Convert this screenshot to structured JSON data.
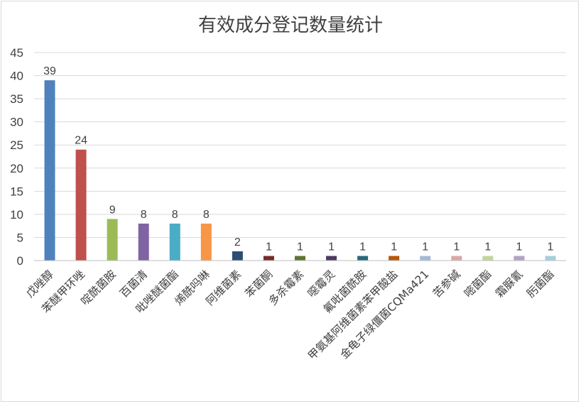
{
  "chart_data": {
    "type": "bar",
    "title": "有效成分登记数量统计",
    "xlabel": "",
    "ylabel": "",
    "ylim": [
      0,
      45
    ],
    "yticks": [
      0,
      5,
      10,
      15,
      20,
      25,
      30,
      35,
      40,
      45
    ],
    "grid": true,
    "legend": "none",
    "categories": [
      "戊唑醇",
      "苯醚甲环唑",
      "啶酰菌胺",
      "百菌清",
      "吡唑醚菌酯",
      "烯酰吗啉",
      "阿维菌素",
      "苯菌酮",
      "多杀霉素",
      "噁霉灵",
      "氟吡菌酰胺",
      "甲氨基阿维菌素苯甲酸盐",
      "金龟子绿僵菌CQMa421",
      "苦参碱",
      "嘧菌酯",
      "霜脲氰",
      "肟菌酯"
    ],
    "values": [
      39,
      24,
      9,
      8,
      8,
      8,
      2,
      1,
      1,
      1,
      1,
      1,
      1,
      1,
      1,
      1,
      1
    ],
    "colors": [
      "#4f81bd",
      "#c0504d",
      "#9bbb59",
      "#8064a2",
      "#4bacc6",
      "#f79646",
      "#2c4d75",
      "#772c2a",
      "#5f7530",
      "#4d3b62",
      "#276a7c",
      "#b65708",
      "#a5b9d9",
      "#dba8a7",
      "#c3d69b",
      "#b3a2c7",
      "#a6cfdb"
    ]
  }
}
